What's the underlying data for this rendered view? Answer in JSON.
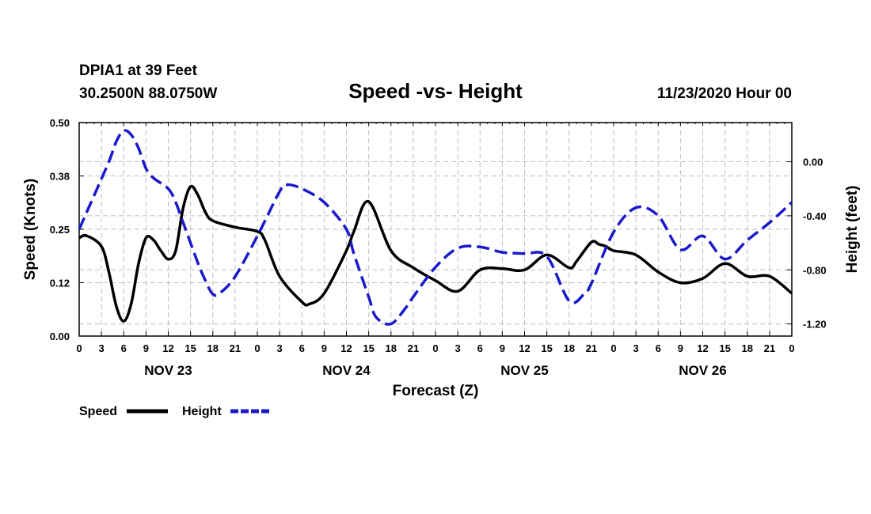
{
  "header": {
    "station": "DPIA1 at 39 Feet",
    "location": "30.2500N 88.0750W",
    "title": "Speed -vs- Height",
    "datetime": "11/23/2020 Hour 00"
  },
  "colors": {
    "speed": "#000000",
    "height": "#1a1acc",
    "grid": "#bdbdbd"
  },
  "chart_data": {
    "type": "line",
    "title": "Speed -vs- Height",
    "xlabel": "Forecast (Z)",
    "ylabel": "Speed (Knots)",
    "y2label": "Height (feet)",
    "xlim": [
      0,
      96
    ],
    "ylim": [
      0,
      0.5
    ],
    "y2lim": [
      -1.29,
      0.29
    ],
    "grid": true,
    "x_tick_values": [
      0,
      3,
      6,
      9,
      12,
      15,
      18,
      21,
      24,
      27,
      30,
      33,
      36,
      39,
      42,
      45,
      48,
      51,
      54,
      57,
      60,
      63,
      66,
      69,
      72,
      75,
      78,
      81,
      84,
      87,
      90,
      93,
      96
    ],
    "x_tick_labels": [
      "0",
      "3",
      "6",
      "9",
      "12",
      "15",
      "18",
      "21",
      "0",
      "3",
      "6",
      "9",
      "12",
      "15",
      "18",
      "21",
      "0",
      "3",
      "6",
      "9",
      "12",
      "15",
      "18",
      "21",
      "0",
      "3",
      "6",
      "9",
      "12",
      "15",
      "18",
      "21",
      "0"
    ],
    "day_labels": [
      {
        "x": 12,
        "label": "NOV 23"
      },
      {
        "x": 36,
        "label": "NOV 24"
      },
      {
        "x": 60,
        "label": "NOV 25"
      },
      {
        "x": 84,
        "label": "NOV 26"
      }
    ],
    "y_ticks": [
      "0.00",
      "0.12",
      "0.25",
      "0.38",
      "0.50"
    ],
    "y_tick_values": [
      0,
      0.125,
      0.25,
      0.375,
      0.5
    ],
    "y2_ticks": [
      "-1.20",
      "-0.80",
      "-0.40",
      "0.00"
    ],
    "y2_tick_values": [
      -1.2,
      -0.8,
      -0.4,
      0.0
    ],
    "legend": [
      {
        "label": "Speed",
        "style": "solid"
      },
      {
        "label": "Height",
        "style": "dashed"
      }
    ],
    "series": [
      {
        "name": "Speed",
        "axis": "left",
        "x": [
          0,
          1,
          3,
          4,
          5,
          6,
          7,
          8,
          9,
          10,
          11,
          12,
          13,
          14,
          15,
          16,
          17,
          18,
          21,
          24,
          25,
          27,
          30,
          31,
          33,
          36,
          37,
          39,
          42,
          45,
          48,
          51,
          54,
          57,
          60,
          63,
          66,
          67,
          69,
          70,
          71,
          72,
          75,
          78,
          81,
          84,
          87,
          90,
          93,
          96
        ],
        "values": [
          0.23,
          0.235,
          0.21,
          0.15,
          0.07,
          0.035,
          0.075,
          0.17,
          0.23,
          0.225,
          0.2,
          0.18,
          0.2,
          0.3,
          0.35,
          0.33,
          0.29,
          0.27,
          0.255,
          0.245,
          0.225,
          0.14,
          0.08,
          0.075,
          0.1,
          0.2,
          0.245,
          0.315,
          0.2,
          0.16,
          0.13,
          0.105,
          0.155,
          0.158,
          0.155,
          0.19,
          0.16,
          0.175,
          0.22,
          0.215,
          0.21,
          0.2,
          0.19,
          0.15,
          0.125,
          0.135,
          0.17,
          0.14,
          0.14,
          0.1
        ]
      },
      {
        "name": "Height",
        "axis": "right",
        "x": [
          0,
          2,
          4,
          5,
          6,
          7,
          8,
          9,
          10,
          12,
          13,
          14,
          15,
          16,
          17,
          18,
          19,
          21,
          24,
          27,
          28,
          30,
          33,
          36,
          37,
          39,
          40,
          42,
          44,
          45,
          48,
          51,
          54,
          57,
          60,
          63,
          66,
          68,
          69,
          72,
          75,
          78,
          81,
          84,
          87,
          90,
          93,
          96
        ],
        "values": [
          -0.5,
          -0.25,
          0.0,
          0.15,
          0.23,
          0.2,
          0.1,
          -0.05,
          -0.12,
          -0.2,
          -0.3,
          -0.45,
          -0.6,
          -0.75,
          -0.88,
          -0.98,
          -0.97,
          -0.85,
          -0.55,
          -0.22,
          -0.17,
          -0.2,
          -0.3,
          -0.5,
          -0.68,
          -1.0,
          -1.15,
          -1.2,
          -1.08,
          -1.0,
          -0.78,
          -0.64,
          -0.63,
          -0.67,
          -0.68,
          -0.7,
          -1.03,
          -0.98,
          -0.9,
          -0.52,
          -0.34,
          -0.4,
          -0.65,
          -0.55,
          -0.72,
          -0.58,
          -0.45,
          -0.3
        ]
      }
    ]
  }
}
